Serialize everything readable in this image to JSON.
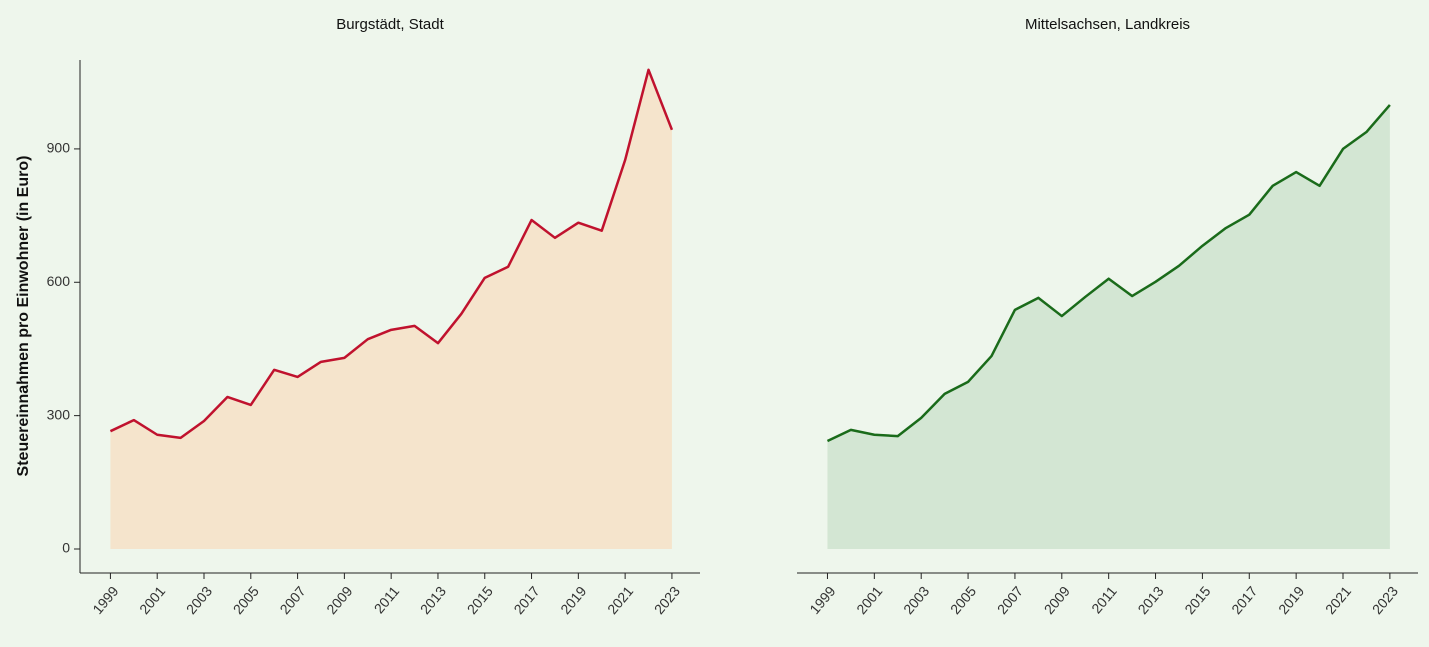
{
  "chart_data": [
    {
      "type": "area",
      "title": "Burgstädt, Stadt",
      "y_label": "Steuereinnahmen pro Einwohner (in Euro)",
      "x": [
        1999,
        2000,
        2001,
        2002,
        2003,
        2004,
        2005,
        2006,
        2007,
        2008,
        2009,
        2010,
        2011,
        2012,
        2013,
        2014,
        2015,
        2016,
        2017,
        2018,
        2019,
        2020,
        2021,
        2022,
        2023
      ],
      "values": [
        265,
        290,
        257,
        250,
        288,
        342,
        324,
        403,
        387,
        421,
        430,
        472,
        493,
        502,
        463,
        529,
        610,
        635,
        740,
        700,
        734,
        716,
        875,
        1078,
        943
      ],
      "color": "#c0122e",
      "fill": "#f5e4cc",
      "xlim": [
        1997.7,
        2024.2
      ],
      "xticks": [
        1999,
        2001,
        2003,
        2005,
        2007,
        2009,
        2011,
        2013,
        2015,
        2017,
        2019,
        2021,
        2023
      ],
      "ylim": [
        -54,
        1100
      ],
      "yticks": [
        0,
        300,
        600,
        900
      ]
    },
    {
      "type": "area",
      "title": "Mittelsachsen, Landkreis",
      "x": [
        1999,
        2000,
        2001,
        2002,
        2003,
        2004,
        2005,
        2006,
        2007,
        2008,
        2009,
        2010,
        2011,
        2012,
        2013,
        2014,
        2015,
        2016,
        2017,
        2018,
        2019,
        2020,
        2021,
        2022,
        2023
      ],
      "values": [
        243,
        268,
        257,
        254,
        295,
        349,
        376,
        434,
        538,
        565,
        524,
        567,
        608,
        569,
        601,
        637,
        682,
        722,
        752,
        817,
        848,
        817,
        900,
        938,
        999
      ],
      "color": "#1a6b1a",
      "fill": "#d3e6d3",
      "xlim": [
        1997.7,
        2024.2
      ],
      "xticks": [
        1999,
        2001,
        2003,
        2005,
        2007,
        2009,
        2011,
        2013,
        2015,
        2017,
        2019,
        2021,
        2023
      ],
      "ylim": [
        -54,
        1100
      ]
    }
  ]
}
